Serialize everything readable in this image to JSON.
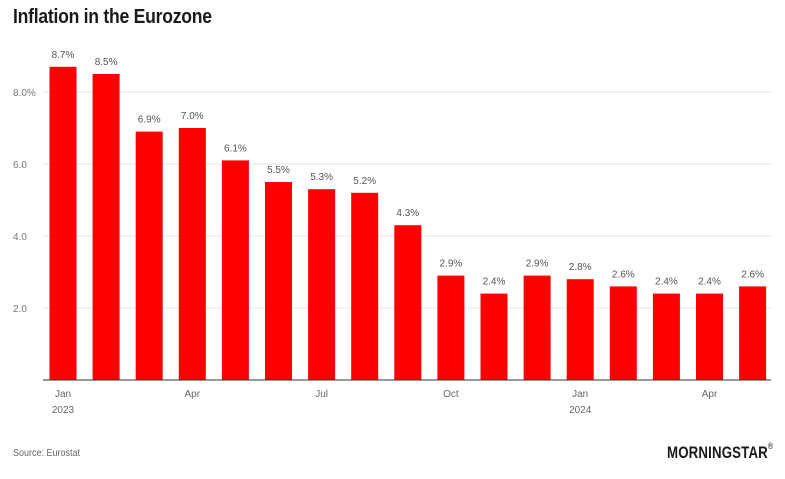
{
  "header": {
    "title": "Inflation in the Eurozone"
  },
  "footer": {
    "source": "Source: Eurostat",
    "brand": "MORNINGSTAR",
    "brand_mark": "®"
  },
  "chart_data": {
    "type": "bar",
    "title": "Inflation in the Eurozone",
    "xlabel": "",
    "ylabel": "",
    "ylim": [
      0,
      9.0
    ],
    "yticks": [
      2.0,
      4.0,
      6.0,
      8.0
    ],
    "ytick_labels": [
      "2.0",
      "4.0",
      "6.0",
      "8.0%"
    ],
    "grid": true,
    "bar_color": "#ff0000",
    "categories": [
      "Jan 2023",
      "Feb 2023",
      "Mar 2023",
      "Apr 2023",
      "May 2023",
      "Jun 2023",
      "Jul 2023",
      "Aug 2023",
      "Sep 2023",
      "Oct 2023",
      "Nov 2023",
      "Dec 2023",
      "Jan 2024",
      "Feb 2024",
      "Mar 2024",
      "Apr 2024",
      "May 2024"
    ],
    "values": [
      8.7,
      8.5,
      6.9,
      7.0,
      6.1,
      5.5,
      5.3,
      5.2,
      4.3,
      2.9,
      2.4,
      2.9,
      2.8,
      2.6,
      2.4,
      2.4,
      2.6
    ],
    "data_labels": [
      "8.7%",
      "8.5%",
      "6.9%",
      "7.0%",
      "6.1%",
      "5.5%",
      "5.3%",
      "5.2%",
      "4.3%",
      "2.9%",
      "2.4%",
      "2.9%",
      "2.8%",
      "2.6%",
      "2.4%",
      "2.4%",
      "2.6%"
    ],
    "x_tick_labels": [
      {
        "index": 0,
        "label": "Jan",
        "sublabel": "2023"
      },
      {
        "index": 3,
        "label": "Apr",
        "sublabel": ""
      },
      {
        "index": 6,
        "label": "Jul",
        "sublabel": ""
      },
      {
        "index": 9,
        "label": "Oct",
        "sublabel": ""
      },
      {
        "index": 12,
        "label": "Jan",
        "sublabel": "2024"
      },
      {
        "index": 15,
        "label": "Apr",
        "sublabel": ""
      }
    ]
  }
}
